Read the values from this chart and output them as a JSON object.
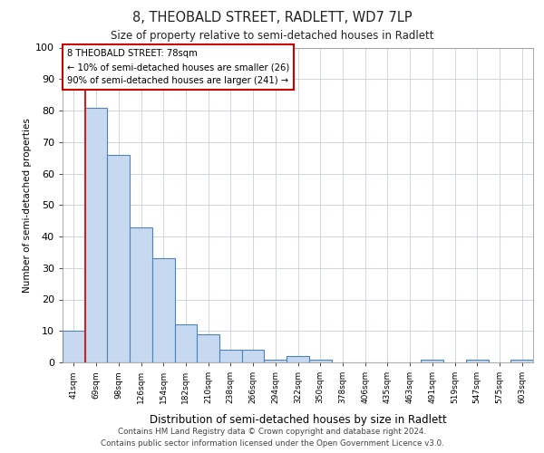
{
  "title": "8, THEOBALD STREET, RADLETT, WD7 7LP",
  "subtitle": "Size of property relative to semi-detached houses in Radlett",
  "xlabel": "Distribution of semi-detached houses by size in Radlett",
  "ylabel": "Number of semi-detached properties",
  "categories": [
    "41sqm",
    "69sqm",
    "98sqm",
    "126sqm",
    "154sqm",
    "182sqm",
    "210sqm",
    "238sqm",
    "266sqm",
    "294sqm",
    "322sqm",
    "350sqm",
    "378sqm",
    "406sqm",
    "435sqm",
    "463sqm",
    "491sqm",
    "519sqm",
    "547sqm",
    "575sqm",
    "603sqm"
  ],
  "values": [
    10,
    81,
    66,
    43,
    33,
    12,
    9,
    4,
    4,
    1,
    2,
    1,
    0,
    0,
    0,
    0,
    1,
    0,
    1,
    0,
    1
  ],
  "bar_color": "#c6d9f0",
  "bar_edge_color": "#4f81bd",
  "red_line_x": 1.5,
  "annotation_line1": "8 THEOBALD STREET: 78sqm",
  "annotation_line2": "← 10% of semi-detached houses are smaller (26)",
  "annotation_line3": "90% of semi-detached houses are larger (241) →",
  "annotation_box_facecolor": "#ffffff",
  "annotation_box_edgecolor": "#cc0000",
  "ylim": [
    0,
    100
  ],
  "yticks": [
    0,
    10,
    20,
    30,
    40,
    50,
    60,
    70,
    80,
    90,
    100
  ],
  "footer_line1": "Contains HM Land Registry data © Crown copyright and database right 2024.",
  "footer_line2": "Contains public sector information licensed under the Open Government Licence v3.0.",
  "bg_color": "#ffffff",
  "grid_color": "#c8d0dc"
}
